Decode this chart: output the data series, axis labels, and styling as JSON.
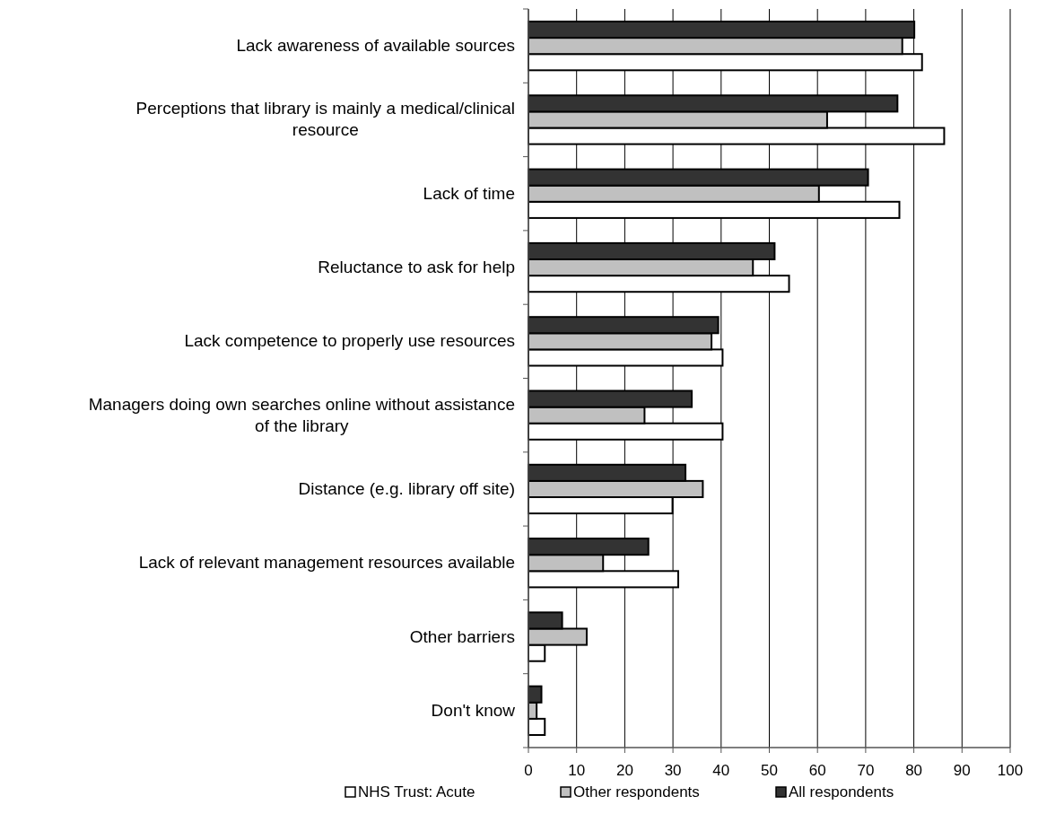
{
  "chart_data": {
    "type": "bar",
    "orientation": "horizontal",
    "categories": [
      "Lack awareness of available sources",
      "Perceptions that library is mainly a medical/clinical resource",
      "Lack of time",
      "Reluctance to ask for help",
      "Lack competence to properly use resources",
      "Managers doing own searches online without assistance of the library",
      "Distance (e.g. library off site)",
      "Lack of relevant management resources available",
      "Other barriers",
      "Don't know"
    ],
    "series": [
      {
        "name": "NHS Trust: Acute",
        "color": "#ffffff",
        "values": [
          81.7,
          86.3,
          77.0,
          54.1,
          40.3,
          40.3,
          29.9,
          31.1,
          3.4,
          3.4
        ]
      },
      {
        "name": "Other respondents",
        "color": "#c0c0c0",
        "values": [
          77.6,
          62.0,
          60.3,
          46.6,
          38.0,
          24.1,
          36.2,
          15.5,
          12.1,
          1.7
        ]
      },
      {
        "name": "All respondents",
        "color": "#333333",
        "values": [
          80.1,
          76.6,
          70.5,
          51.1,
          39.4,
          33.9,
          32.6,
          24.9,
          7.0,
          2.7
        ]
      }
    ],
    "xlim": [
      0,
      100
    ],
    "xticks": [
      0,
      10,
      20,
      30,
      40,
      50,
      60,
      70,
      80,
      90,
      100
    ],
    "grid": "x",
    "legend": "bottom"
  }
}
